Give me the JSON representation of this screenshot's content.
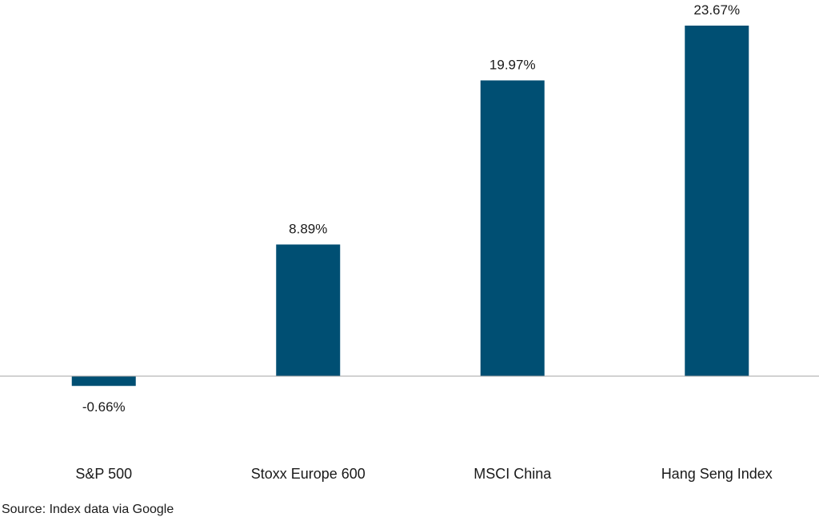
{
  "chart_data": {
    "type": "bar",
    "categories": [
      "S&P 500",
      "Stoxx Europe 600",
      "MSCI China",
      "Hang Seng Index"
    ],
    "values": [
      -0.66,
      8.89,
      19.97,
      23.67
    ],
    "data_labels": [
      "-0.66%",
      "8.89%",
      "19.97%",
      "23.67%"
    ],
    "title": "",
    "xlabel": "",
    "ylabel": "",
    "ylim": [
      -2,
      25
    ],
    "grid": false,
    "legend": "none",
    "bar_color": "#004f73",
    "baseline_color": "#a6a6a6"
  },
  "source": {
    "text": "Source: Index data via Google"
  }
}
